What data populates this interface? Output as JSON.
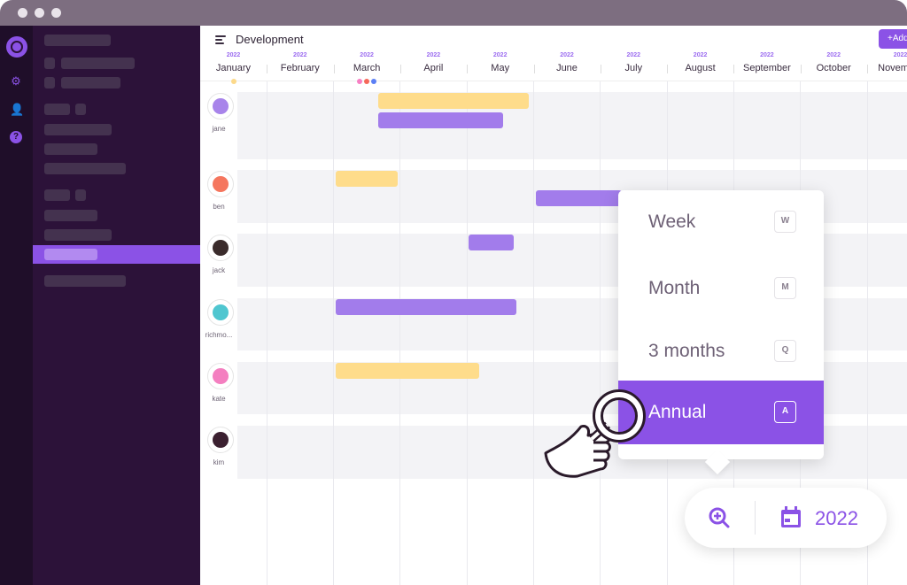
{
  "window": {
    "controls": [
      "close",
      "minimize",
      "maximize"
    ]
  },
  "rail": {
    "icons": [
      "logo-icon",
      "gear-icon",
      "users-icon",
      "help-icon"
    ]
  },
  "header": {
    "title": "Development",
    "add_label": "+Add"
  },
  "timeline": {
    "months": [
      {
        "year": "2022",
        "name": "January",
        "dots": [
          "#fcd98a"
        ]
      },
      {
        "year": "2022",
        "name": "February",
        "dots": []
      },
      {
        "year": "2022",
        "name": "March",
        "dots": [
          "#f77fc4",
          "#f5685a",
          "#5b7ff5"
        ]
      },
      {
        "year": "2022",
        "name": "April",
        "dots": []
      },
      {
        "year": "2022",
        "name": "May",
        "dots": []
      },
      {
        "year": "2022",
        "name": "June",
        "dots": []
      },
      {
        "year": "2022",
        "name": "July",
        "dots": []
      },
      {
        "year": "2022",
        "name": "August",
        "dots": []
      },
      {
        "year": "2022",
        "name": "September",
        "dots": []
      },
      {
        "year": "2022",
        "name": "October",
        "dots": []
      },
      {
        "year": "2022",
        "name": "November",
        "dots": []
      }
    ]
  },
  "colors": {
    "accent": "#8b52e6",
    "task_yellow": "#fedc8b",
    "task_purple": "#a27ceb"
  },
  "people": [
    {
      "name": "jane",
      "avatar": "#a884ea",
      "bars": [
        {
          "start": "2022-03-21",
          "end": "2022-05-29",
          "color": "yellow"
        },
        {
          "start": "2022-03-21",
          "end": "2022-05-17",
          "color": "purple"
        }
      ]
    },
    {
      "name": "ben",
      "avatar": "#f5765e",
      "bars": [
        {
          "start": "2022-03-01",
          "end": "2022-03-30",
          "color": "yellow"
        },
        {
          "start": "2022-06-01",
          "end": "2022-07-10",
          "color": "purple"
        }
      ]
    },
    {
      "name": "jack",
      "avatar": "#3a2b2b",
      "bars": [
        {
          "start": "2022-05-01",
          "end": "2022-05-22",
          "color": "purple"
        }
      ]
    },
    {
      "name": "richmo...",
      "avatar": "#4fc6d0",
      "bars": [
        {
          "start": "2022-03-01",
          "end": "2022-05-23",
          "color": "purple"
        }
      ]
    },
    {
      "name": "kate",
      "avatar": "#f47fc0",
      "bars": [
        {
          "start": "2022-03-01",
          "end": "2022-05-06",
          "color": "yellow"
        }
      ]
    },
    {
      "name": "kim",
      "avatar": "#3b2030",
      "bars": []
    }
  ],
  "zoom_menu": {
    "options": [
      {
        "label": "Week",
        "key": "W",
        "selected": false
      },
      {
        "label": "Month",
        "key": "M",
        "selected": false
      },
      {
        "label": "3 months",
        "key": "Q",
        "selected": false
      },
      {
        "label": "Annual",
        "key": "A",
        "selected": true
      }
    ]
  },
  "toolbar": {
    "zoom_icon": "zoom-in-icon",
    "calendar_icon": "calendar-icon",
    "year": "2022"
  }
}
